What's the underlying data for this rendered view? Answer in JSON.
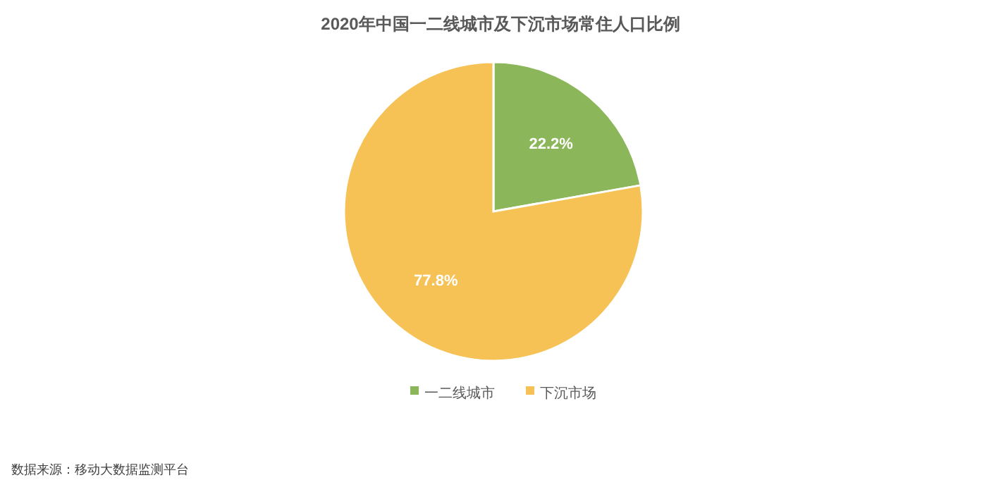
{
  "chart_data": {
    "type": "pie",
    "title": "2020年中国一二线城市及下沉市场常住人口比例",
    "categories": [
      "一二线城市",
      "下沉市场"
    ],
    "values": [
      22.2,
      77.8
    ],
    "colors": [
      "#8cb65a",
      "#f6c255"
    ],
    "value_labels": [
      "22.2%",
      "77.8%"
    ],
    "legend": "bottom",
    "annotations": [
      "数据来源：移动大数据监测平台"
    ]
  }
}
